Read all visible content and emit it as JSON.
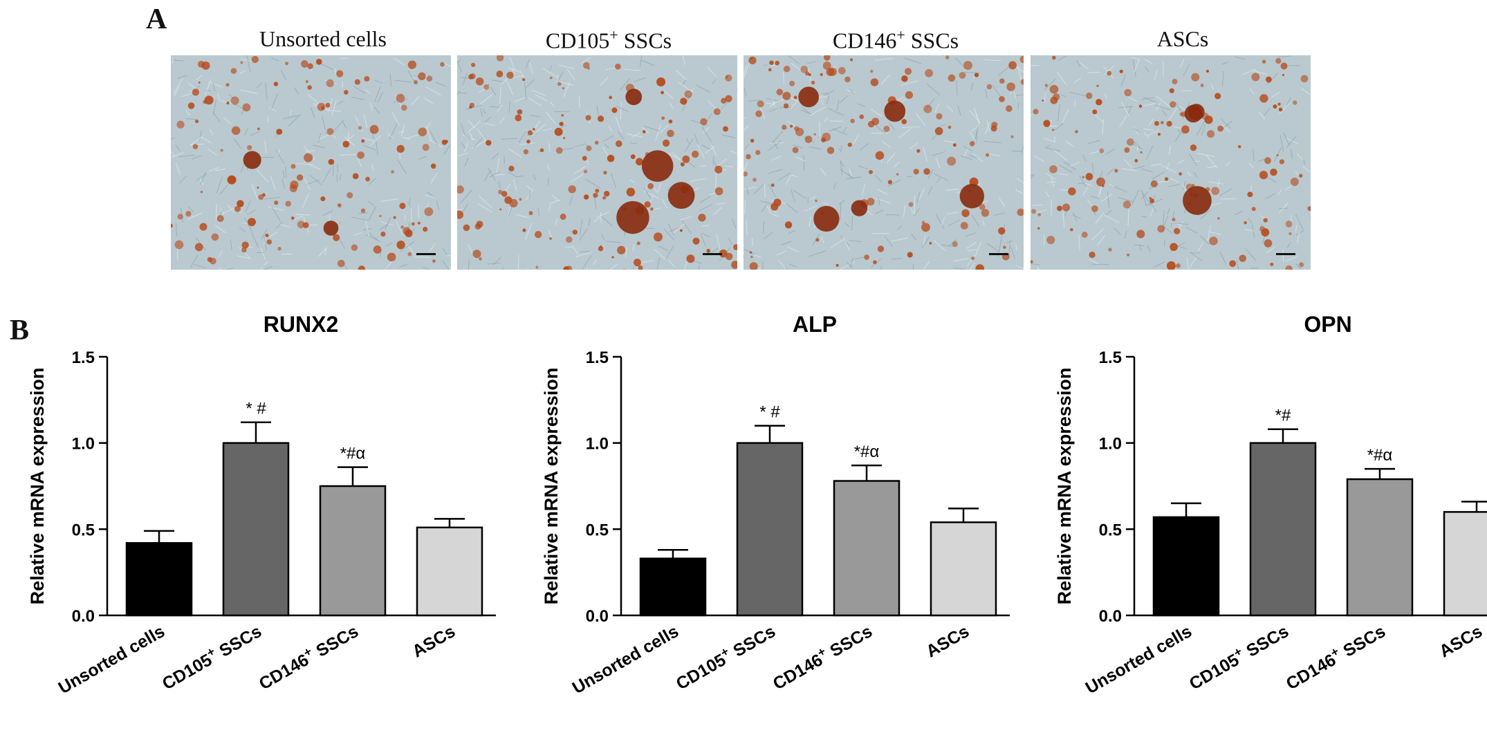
{
  "panel_a": {
    "letter": "A",
    "images": [
      {
        "label": "Unsorted cells",
        "base": "Unsorted cells",
        "sup": ""
      },
      {
        "label": "CD105+ SSCs",
        "base": "CD105",
        "sup": "+",
        "tail": " SSCs"
      },
      {
        "label": "CD146+ SSCs",
        "base": "CD146",
        "sup": "+",
        "tail": " SSCs"
      },
      {
        "label": "ASCs",
        "base": "ASCs",
        "sup": ""
      }
    ]
  },
  "panel_b": {
    "letter": "B"
  },
  "colors": {
    "unsorted": "#000000",
    "cd105": "#666666",
    "cd146": "#999999",
    "ascs": "#d6d6d6",
    "photo_bg": "#b9c9cf",
    "stain": "#b64a1a"
  },
  "chart_data": [
    {
      "type": "bar",
      "title": "RUNX2",
      "ylabel": "Relative mRNA expression",
      "ylim": [
        0,
        1.5
      ],
      "yticks": [
        "0.0",
        "0.5",
        "1.0",
        "1.5"
      ],
      "categories": [
        "Unsorted cells",
        "CD105+ SSCs",
        "CD146+ SSCs",
        "ASCs"
      ],
      "values": [
        0.42,
        1.0,
        0.75,
        0.51
      ],
      "errors": [
        0.07,
        0.12,
        0.11,
        0.05
      ],
      "annotations": [
        "",
        "* #",
        "*#α",
        ""
      ]
    },
    {
      "type": "bar",
      "title": "ALP",
      "ylabel": "Relative mRNA expression",
      "ylim": [
        0,
        1.5
      ],
      "yticks": [
        "0.0",
        "0.5",
        "1.0",
        "1.5"
      ],
      "categories": [
        "Unsorted cells",
        "CD105+ SSCs",
        "CD146+ SSCs",
        "ASCs"
      ],
      "values": [
        0.33,
        1.0,
        0.78,
        0.54
      ],
      "errors": [
        0.05,
        0.1,
        0.09,
        0.08
      ],
      "annotations": [
        "",
        "* #",
        "*#α",
        ""
      ]
    },
    {
      "type": "bar",
      "title": "OPN",
      "ylabel": "Relative mRNA expression",
      "ylim": [
        0,
        1.5
      ],
      "yticks": [
        "0.0",
        "0.5",
        "1.0",
        "1.5"
      ],
      "categories": [
        "Unsorted cells",
        "CD105+ SSCs",
        "CD146+ SSCs",
        "ASCs"
      ],
      "values": [
        0.57,
        1.0,
        0.79,
        0.6
      ],
      "errors": [
        0.08,
        0.08,
        0.06,
        0.06
      ],
      "annotations": [
        "",
        "*#",
        "*#α",
        ""
      ]
    }
  ]
}
